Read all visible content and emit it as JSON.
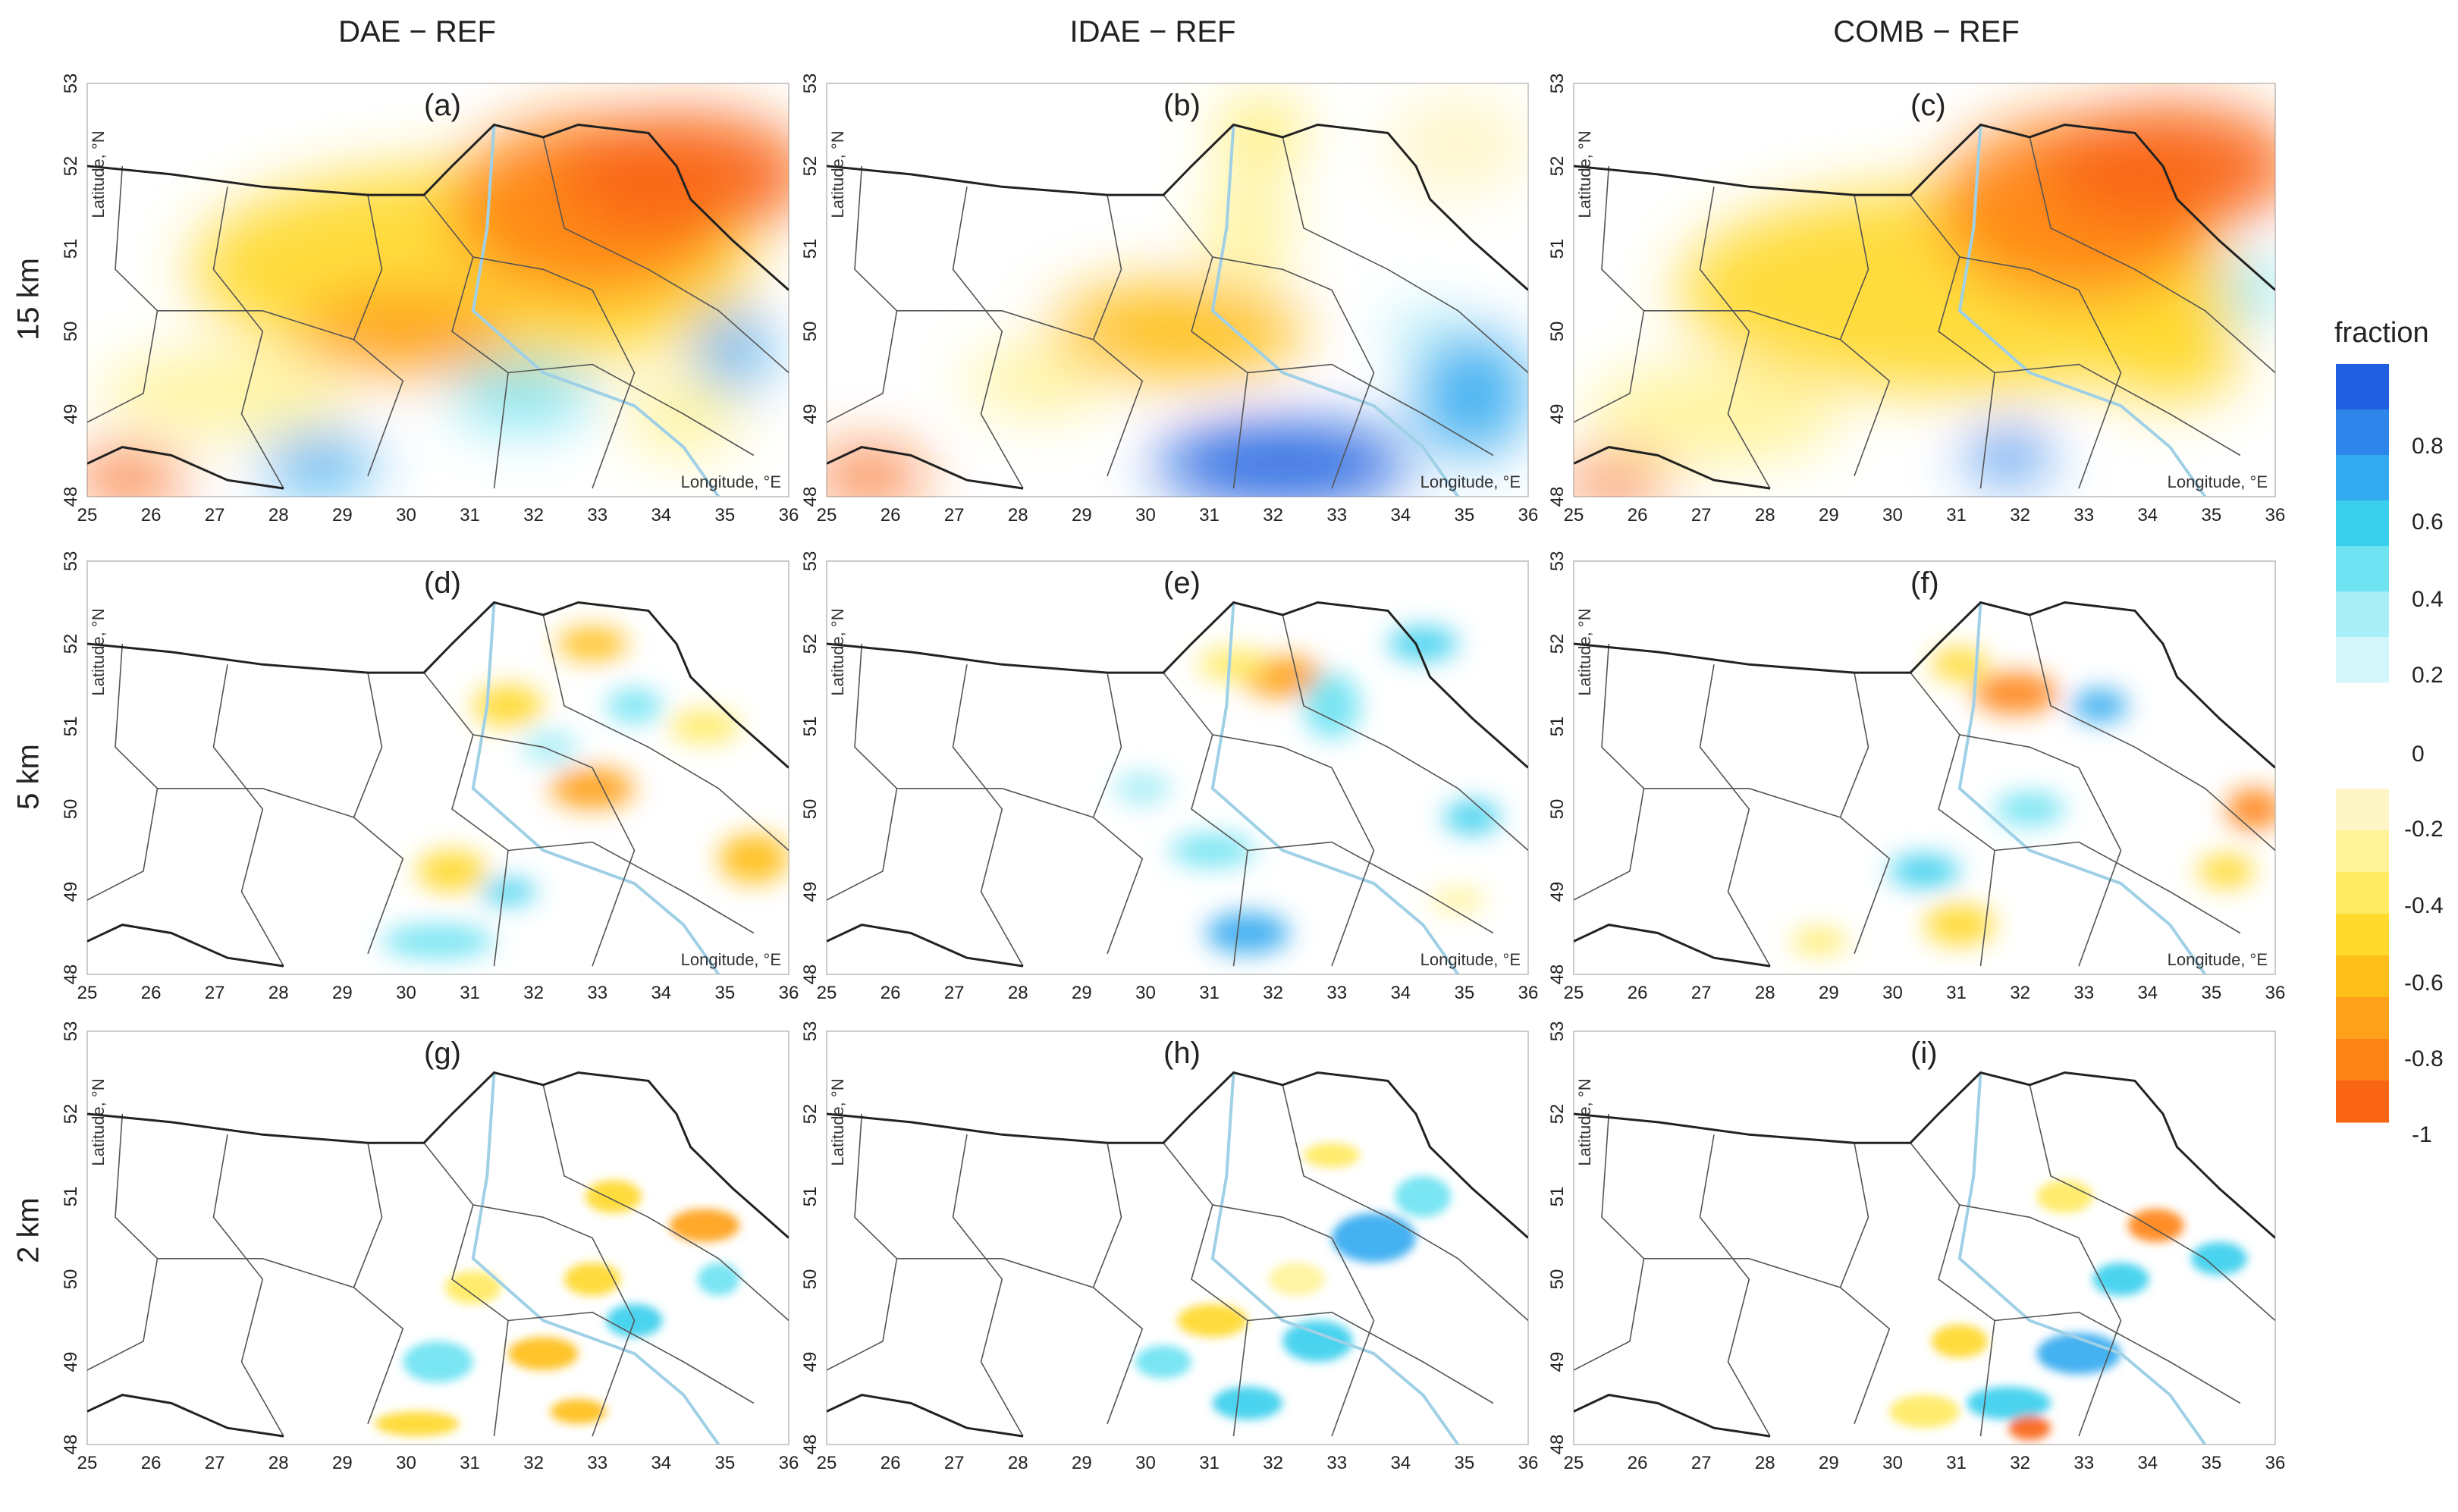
{
  "columns": [
    "DAE − REF",
    "IDAE − REF",
    "COMB − REF"
  ],
  "rows": [
    "15 km",
    "5 km",
    "2 km"
  ],
  "panels": [
    {
      "label": "(a)",
      "row": 0,
      "col": 0,
      "show_lon_label": true
    },
    {
      "label": "(b)",
      "row": 0,
      "col": 1,
      "show_lon_label": true
    },
    {
      "label": "(c)",
      "row": 0,
      "col": 2,
      "show_lon_label": true
    },
    {
      "label": "(d)",
      "row": 1,
      "col": 0,
      "show_lon_label": true
    },
    {
      "label": "(e)",
      "row": 1,
      "col": 1,
      "show_lon_label": true
    },
    {
      "label": "(f)",
      "row": 1,
      "col": 2,
      "show_lon_label": true
    },
    {
      "label": "(g)",
      "row": 2,
      "col": 0,
      "show_lon_label": false
    },
    {
      "label": "(h)",
      "row": 2,
      "col": 1,
      "show_lon_label": false
    },
    {
      "label": "(i)",
      "row": 2,
      "col": 2,
      "show_lon_label": false
    }
  ],
  "axes": {
    "lat_label": "Latitude, °N",
    "lon_label": "Longitude, °E",
    "lat_ticks": [
      "53",
      "52",
      "51",
      "50",
      "49",
      "48"
    ],
    "lon_ticks": [
      "25",
      "26",
      "27",
      "28",
      "29",
      "30",
      "31",
      "32",
      "33",
      "34",
      "35",
      "36"
    ]
  },
  "colorbar": {
    "title": "fraction",
    "positive_ticks": [
      "0.8",
      "0.6",
      "0.4",
      "0.2"
    ],
    "zero": "0",
    "negative_ticks": [
      "-0.2",
      "-0.4",
      "-0.6",
      "-0.8",
      "-1"
    ],
    "positive_colors": [
      "#1f5fe0",
      "#2f86ea",
      "#34aaf0",
      "#3bcfee",
      "#6fe3f2",
      "#a7eef6",
      "#d3f6fa"
    ],
    "negative_colors": [
      "#fff6c8",
      "#fff39a",
      "#ffea63",
      "#ffd92b",
      "#ffbf1a",
      "#ffa11a",
      "#ff8418",
      "#f96514"
    ]
  },
  "colors": {
    "border_thick": "#222222",
    "border_thin": "#555555",
    "river": "#9fd0e6"
  }
}
